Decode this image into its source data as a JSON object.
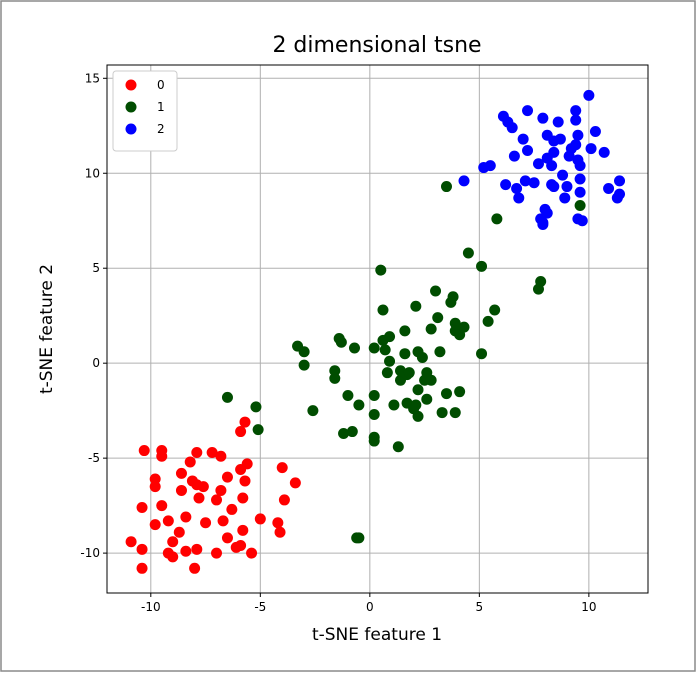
{
  "chart_data": {
    "type": "scatter",
    "title": "2 dimensional tsne",
    "x_label": "t-SNE feature 1",
    "y_label": "t-SNE feature 2",
    "xlim": [
      -12,
      12.7
    ],
    "ylim": [
      -12.1,
      15.7
    ],
    "xticks": [
      -10,
      -5,
      0,
      5,
      10
    ],
    "yticks": [
      -10,
      -5,
      0,
      5,
      10,
      15
    ],
    "grid": true,
    "legend": "upper left",
    "series": [
      {
        "name": "0",
        "color": "#ff0000",
        "x": [
          -10.3,
          -9.5,
          -9.5,
          -9.8,
          -10.4,
          -10.9,
          -10.4,
          -10.4,
          -9.8,
          -9.5,
          -9.8,
          -9.2,
          -9.2,
          -9.0,
          -8.7,
          -8.6,
          -8.6,
          -8.4,
          -8.2,
          -8.1,
          -7.9,
          -7.9,
          -7.8,
          -7.6,
          -7.5,
          -7.2,
          -7.0,
          -6.8,
          -6.8,
          -6.7,
          -6.5,
          -6.3,
          -6.1,
          -5.9,
          -5.9,
          -5.7,
          -5.6,
          -5.7,
          -5.8,
          -5.8,
          -5.9,
          -5.4,
          -5.0,
          -4.2,
          -4.1,
          -4.0,
          -3.9,
          -3.4,
          -8.0,
          -7.9,
          -7.0,
          -6.5,
          -8.4,
          -9.0
        ],
        "y": [
          -4.6,
          -4.6,
          -4.9,
          -6.1,
          -7.6,
          -9.4,
          -9.8,
          -10.8,
          -6.5,
          -7.5,
          -8.5,
          -8.3,
          -10.0,
          -9.4,
          -8.9,
          -5.8,
          -6.7,
          -8.1,
          -5.2,
          -6.2,
          -6.4,
          -4.7,
          -7.1,
          -6.5,
          -8.4,
          -4.7,
          -7.2,
          -4.9,
          -6.7,
          -8.3,
          -9.2,
          -7.7,
          -9.7,
          -5.6,
          -3.6,
          -3.1,
          -5.3,
          -6.2,
          -7.1,
          -8.8,
          -9.6,
          -10.0,
          -8.2,
          -8.4,
          -8.9,
          -5.5,
          -7.2,
          -6.3,
          -10.8,
          -9.8,
          -10.0,
          -6.0,
          -9.9,
          -10.2
        ]
      },
      {
        "name": "1",
        "color": "#004d00",
        "x": [
          -6.5,
          -5.2,
          -5.1,
          -3.3,
          -3.0,
          -3.0,
          -2.6,
          -1.6,
          -1.6,
          -1.4,
          -1.3,
          -1.0,
          -0.7,
          -0.8,
          -0.5,
          -0.6,
          0.2,
          0.2,
          0.2,
          0.2,
          0.2,
          0.5,
          0.6,
          0.6,
          0.7,
          0.8,
          0.9,
          0.9,
          1.1,
          1.3,
          1.4,
          1.4,
          1.6,
          1.6,
          1.7,
          1.7,
          1.8,
          2.0,
          2.1,
          2.1,
          2.2,
          2.2,
          2.2,
          2.4,
          2.5,
          2.6,
          2.6,
          2.8,
          2.8,
          3.0,
          3.1,
          3.2,
          3.3,
          3.5,
          3.7,
          3.8,
          3.9,
          3.9,
          3.9,
          4.1,
          4.1,
          4.3,
          4.5,
          5.1,
          5.1,
          5.4,
          5.7,
          5.8,
          3.5,
          7.7,
          7.8,
          9.6,
          -0.5,
          -1.2
        ],
        "y": [
          -1.8,
          -2.3,
          -3.5,
          0.9,
          0.6,
          -0.1,
          -2.5,
          -0.4,
          -0.8,
          1.3,
          1.1,
          -1.7,
          0.8,
          -3.6,
          -9.2,
          -9.2,
          0.8,
          -1.7,
          -2.7,
          -3.9,
          -4.1,
          4.9,
          2.8,
          1.2,
          0.7,
          -0.5,
          1.4,
          0.1,
          -2.2,
          -4.4,
          -0.9,
          -0.4,
          0.5,
          1.7,
          -0.6,
          -2.1,
          -0.5,
          -2.4,
          3.0,
          -2.2,
          -1.4,
          0.6,
          -2.8,
          0.3,
          -0.9,
          -0.5,
          -1.9,
          1.8,
          -0.9,
          3.8,
          2.4,
          0.6,
          -2.6,
          -1.6,
          3.2,
          3.5,
          2.1,
          -2.6,
          1.7,
          -1.5,
          1.5,
          1.9,
          5.8,
          5.1,
          0.5,
          2.2,
          2.8,
          7.6,
          9.3,
          3.9,
          4.3,
          8.3,
          -2.2,
          -3.7
        ]
      },
      {
        "name": "2",
        "color": "#0000ff",
        "x": [
          4.3,
          5.2,
          5.5,
          6.1,
          6.3,
          6.5,
          6.6,
          6.7,
          6.8,
          7.0,
          7.1,
          7.2,
          7.5,
          7.7,
          7.9,
          8.1,
          8.1,
          8.3,
          8.3,
          8.4,
          8.0,
          7.8,
          7.9,
          7.9,
          8.1,
          8.4,
          8.6,
          8.7,
          8.8,
          9.1,
          9.2,
          9.4,
          9.4,
          9.5,
          9.4,
          9.5,
          9.6,
          9.6,
          9.6,
          9.7,
          9.5,
          10.0,
          10.1,
          10.3,
          10.7,
          10.9,
          11.4,
          11.4,
          11.3,
          9.0,
          8.9,
          8.4,
          7.2,
          6.2
        ],
        "y": [
          9.6,
          10.3,
          10.4,
          13.0,
          12.7,
          12.4,
          10.9,
          9.2,
          8.7,
          11.8,
          9.6,
          13.3,
          9.5,
          10.5,
          12.9,
          12.0,
          10.8,
          10.4,
          9.4,
          9.3,
          8.1,
          7.6,
          7.4,
          7.3,
          7.9,
          11.7,
          12.7,
          11.8,
          9.9,
          10.9,
          11.3,
          13.3,
          12.8,
          12.0,
          11.5,
          10.7,
          10.4,
          9.7,
          9.0,
          7.5,
          7.6,
          14.1,
          11.3,
          12.2,
          11.1,
          9.2,
          8.9,
          9.6,
          8.7,
          9.3,
          8.7,
          11.1,
          11.2,
          9.4
        ]
      }
    ]
  }
}
